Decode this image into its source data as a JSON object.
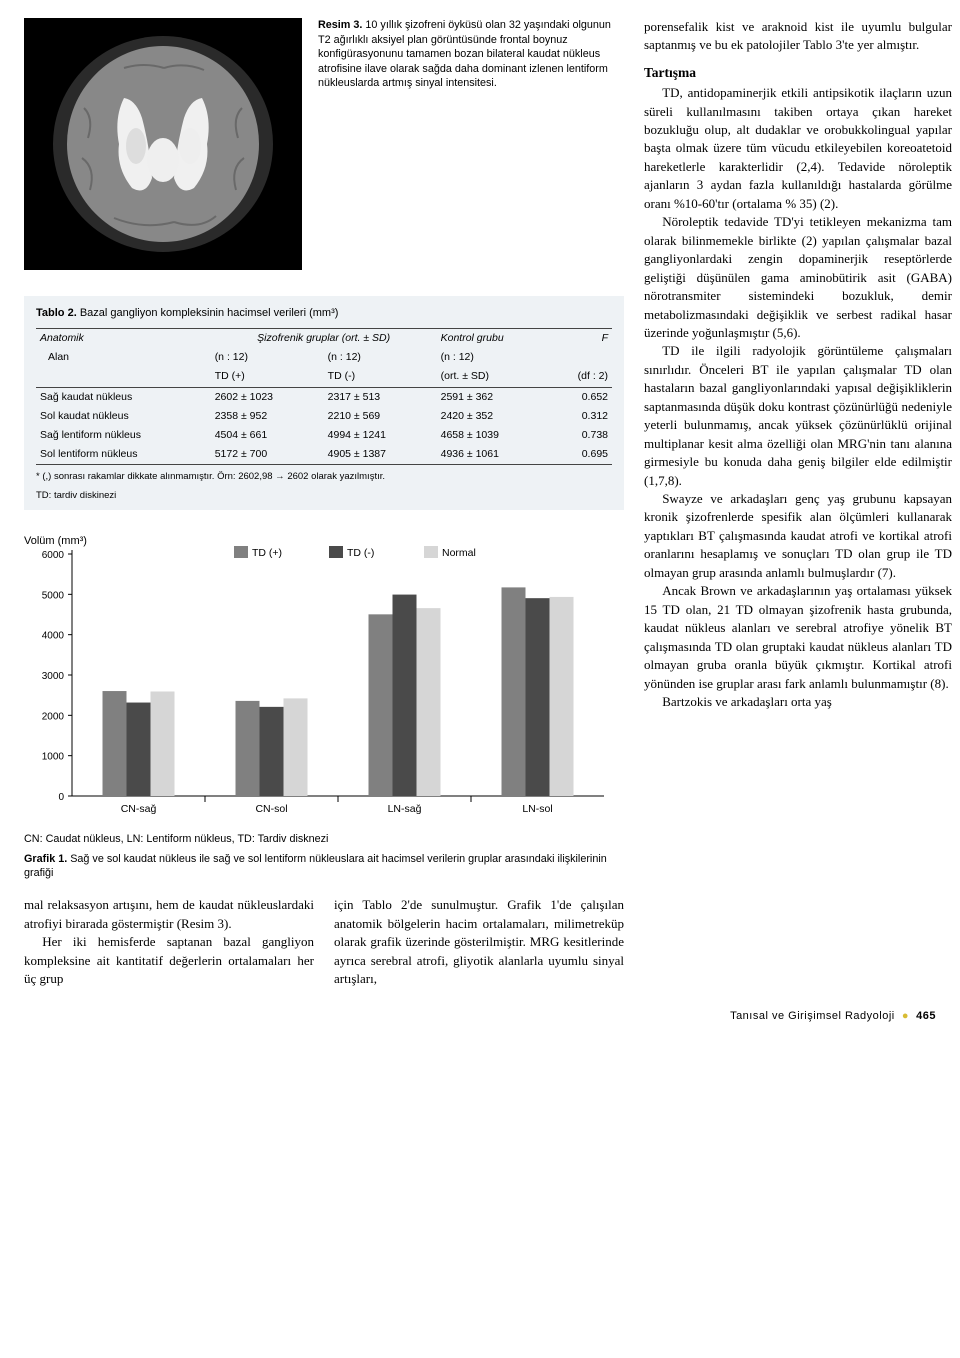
{
  "caption": {
    "label": "Resim 3.",
    "text": "10 yıllık şizofreni öyküsü olan 32 yaşındaki olgunun T2 ağırlıklı aksiyel plan görüntüsünde frontal boynuz konfigürasyonunu tamamen bozan bilateral kaudat nükleus atrofisine ilave olarak sağda daha dominant izlenen lentiform nükleuslarda artmış sinyal intensitesi."
  },
  "table": {
    "title_label": "Tablo 2.",
    "title_text": "Bazal gangliyon kompleksinin hacimsel verileri (mm³)",
    "header": {
      "anatomik": "Anatomik",
      "sizo": "Şizofrenik gruplar (ort. ± SD)",
      "kontrol": "Kontrol grubu",
      "F": "F",
      "alan": "Alan",
      "n12": "(n : 12)",
      "tdp": "TD (+)",
      "tdm": "TD (-)",
      "ort": "(ort. ± SD)",
      "df": "(df : 2)"
    },
    "rows": [
      {
        "name": "Sağ kaudat nükleus",
        "a": "2602 ± 1023",
        "b": "2317 ± 513",
        "c": "2591 ± 362",
        "f": "0.652"
      },
      {
        "name": "Sol  kaudat nükleus",
        "a": "2358 ±  952",
        "b": "2210 ± 569",
        "c": "2420 ± 352",
        "f": "0.312"
      },
      {
        "name": "Sağ lentiform nükleus",
        "a": "4504 ±  661",
        "b": "4994 ± 1241",
        "c": "4658 ± 1039",
        "f": "0.738"
      },
      {
        "name": "Sol  lentiform nükleus",
        "a": "5172 ±  700",
        "b": "4905 ± 1387",
        "c": "4936 ± 1061",
        "f": "0.695"
      }
    ],
    "foot1": "* (,) sonrası rakamlar dikkate alınmamıştır. Örn: 2602,98 → 2602 olarak yazılmıştır.",
    "foot2": "TD: tardiv diskinezi"
  },
  "chart": {
    "ylabel": "Volüm (mm³)",
    "legend": [
      "TD (+)",
      "TD (-)",
      "Normal"
    ],
    "legend_colors": [
      "#808080",
      "#4a4a4a",
      "#d6d6d6"
    ],
    "ymax": 6000,
    "ytick": 1000,
    "categories": [
      "CN-sağ",
      "CN-sol",
      "LN-sağ",
      "LN-sol"
    ],
    "series": [
      {
        "name": "TD (+)",
        "color": "#808080",
        "vals": [
          2602,
          2358,
          4504,
          5172
        ]
      },
      {
        "name": "TD (-)",
        "color": "#4a4a4a",
        "vals": [
          2317,
          2210,
          4994,
          4905
        ]
      },
      {
        "name": "Normal",
        "color": "#d6d6d6",
        "vals": [
          2591,
          2420,
          4658,
          4936
        ]
      }
    ],
    "footnote": "CN: Caudat nükleus, LN: Lentiform nükleus, TD: Tardiv disknezi",
    "cap_label": "Grafik 1.",
    "cap_text": "Sağ ve sol kaudat nükleus ile sağ ve sol lentiform nükleuslara ait hacimsel verilerin gruplar arasındaki ilişkilerinin grafiği"
  },
  "left_bottom": {
    "p1": "mal relaksasyon artışını, hem de kaudat nükleuslardaki atrofiyi birarada göstermiştir (Resim 3).",
    "p2": "Her iki hemisferde saptanan bazal gangliyon kompleksine ait  kantitatif değerlerin ortalamaları her üç grup",
    "p3": "için Tablo 2'de sunulmuştur.  Grafik 1'de  çalışılan anatomik bölgelerin hacim ortalamaları, milimetreküp olarak grafik üzerinde gösterilmiştir. MRG kesitlerinde ayrıca serebral atrofi, gliyotik alanlarla uyumlu sinyal artışları,"
  },
  "right": {
    "p1": "porensefalik kist ve araknoid kist ile uyumlu bulgular saptanmış ve bu ek patolojiler Tablo 3'te yer almıştır.",
    "head": "Tartışma",
    "p2": "TD, antidopaminerjik etkili antipsikotik ilaçların uzun süreli kullanılmasını takiben ortaya çıkan hareket bozukluğu olup, alt dudaklar ve orobukkolingual yapılar başta olmak üzere tüm vücudu etkileyebilen koreoatetoid hareketlerle karakterlidir (2,4). Tedavide nöroleptik ajanların 3 aydan fazla kullanıldığı hastalarda görülme oranı %10-60'tır (ortalama % 35) (2).",
    "p3": "Nöroleptik tedavide TD'yi tetikleyen mekanizma tam olarak bilinmemekle birlikte (2) yapılan çalışmalar bazal gangliyonlardaki zengin dopaminerjik reseptörlerde geliştiği düşünülen  gama aminobütirik asit (GABA) nörotransmiter sistemindeki bozukluk, demir metabolizmasındaki değişiklik ve serbest radikal hasar üzerinde yoğunlaşmıştır  (5,6).",
    "p4": "TD ile ilgili radyolojik görüntüleme çalışmaları sınırlıdır. Önceleri BT ile yapılan çalışmalar TD olan hastaların bazal gangliyonlarındaki yapısal değişikliklerin saptanmasında düşük doku kontrast çözünürlüğü nedeniyle yeterli bulunmamış, ancak yüksek çözünürlüklü orijinal multiplanar kesit alma özelliği olan MRG'nin tanı alanına girmesiyle bu konuda daha geniş bilgiler  elde edilmiştir (1,7,8).",
    "p5": "Swayze ve arkadaşları genç yaş grubunu  kapsayan kronik şizofrenlerde spesifik alan ölçümleri kullanarak yaptıkları BT çalışmasında kaudat atrofi ve kortikal atrofi oranlarını hesaplamış ve sonuçları TD olan grup ile TD olmayan grup arasında anlamlı bulmuşlardır (7).",
    "p6": "Ancak Brown ve arkadaşlarının yaş ortalaması yüksek 15 TD olan, 21 TD olmayan şizofrenik hasta grubunda, kaudat nükleus alanları ve serebral atrofiye yönelik BT çalışmasında TD olan gruptaki kaudat nükleus alanları TD olmayan gruba oranla büyük çıkmıştır. Kortikal atrofi yönünden ise gruplar arası fark anlamlı bulunmamıştır (8).",
    "p7": "Bartzokis ve arkadaşları orta yaş"
  },
  "footer": {
    "journal": "Tanısal ve Girişimsel Radyoloji",
    "page": "465"
  }
}
